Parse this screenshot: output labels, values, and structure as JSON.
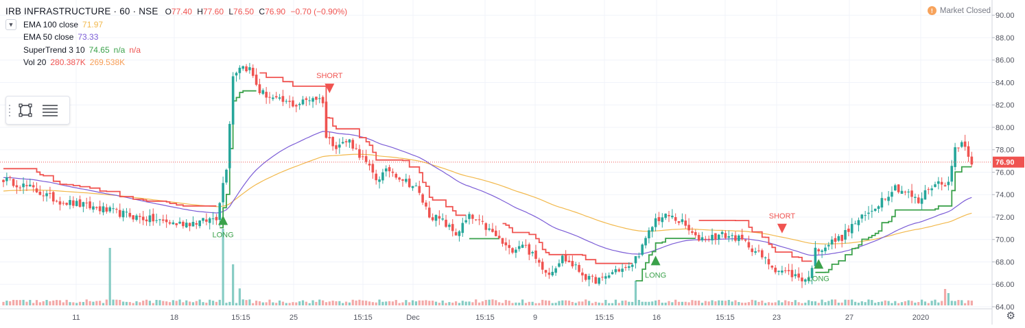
{
  "header": {
    "symbol": "IRB INFRASTRUCTURE · 60 · NSE",
    "ohlc": [
      {
        "label": "O",
        "value": "77.40"
      },
      {
        "label": "H",
        "value": "77.60"
      },
      {
        "label": "L",
        "value": "76.50"
      },
      {
        "label": "C",
        "value": "76.90"
      }
    ],
    "change": "−0.70 (−0.90%)"
  },
  "indicators": [
    {
      "name": "EMA 100 close",
      "values": [
        "71.97"
      ],
      "colors": [
        "#f2b84b"
      ]
    },
    {
      "name": "EMA 50 close",
      "values": [
        "73.33"
      ],
      "colors": [
        "#7b5cd6"
      ]
    },
    {
      "name": "SuperTrend 3 10",
      "values": [
        "74.65",
        "n/a",
        "n/a"
      ],
      "colors": [
        "#3aa14a",
        "#3aa14a",
        "#ef5350"
      ]
    },
    {
      "name": "Vol 20",
      "values": [
        "280.387K",
        "269.538K"
      ],
      "colors": [
        "#ef5350",
        "#f79d55"
      ]
    }
  ],
  "status": {
    "market": "Market Closed",
    "market_icon": "!"
  },
  "tools": [
    "rectangle-icon",
    "horizontal-lines-icon"
  ],
  "colors": {
    "up": "#26a69a",
    "down": "#ef5350",
    "supertrend_up": "#3aa14a",
    "supertrend_down": "#f05350",
    "ema50": "#7b5cd6",
    "ema100": "#f2b84b",
    "vol_up": "#86ccc4",
    "vol_down": "#f3a9a8"
  },
  "chart_data": {
    "type": "candlestick",
    "symbol": "IRB INFRASTRUCTURE",
    "interval": "60",
    "exchange": "NSE",
    "ylim": [
      64.0,
      90.5
    ],
    "y_ticks": [
      "90.00",
      "88.00",
      "86.00",
      "84.00",
      "82.00",
      "80.00",
      "78.00",
      "76.00",
      "74.00",
      "72.00",
      "70.00",
      "68.00",
      "66.00",
      "64.00"
    ],
    "x_ticks": [
      "11",
      "18",
      "15:15",
      "25",
      "15:15",
      "Dec",
      "15:15",
      "9",
      "15:15",
      "16",
      "15:15",
      "23",
      "27",
      "2020"
    ],
    "last_price": "76.90",
    "signals": [
      {
        "label": "LONG",
        "type": "long",
        "price": 71.3
      },
      {
        "label": "SHORT",
        "type": "short",
        "price": 83.9
      },
      {
        "label": "LONG",
        "type": "long",
        "price": 67.7
      },
      {
        "label": "SHORT",
        "type": "short",
        "price": 71.4
      },
      {
        "label": "LONG",
        "type": "long",
        "price": 67.4
      }
    ],
    "close_anchors": [
      [
        0,
        75.4
      ],
      [
        8,
        74.6
      ],
      [
        16,
        73.5
      ],
      [
        28,
        72.8
      ],
      [
        40,
        72.0
      ],
      [
        52,
        71.4
      ],
      [
        60,
        71.6
      ],
      [
        64,
        72.0
      ],
      [
        67,
        76.5
      ],
      [
        69,
        84.6
      ],
      [
        71,
        85.5
      ],
      [
        74,
        85.2
      ],
      [
        77,
        83.2
      ],
      [
        82,
        82.4
      ],
      [
        88,
        82.0
      ],
      [
        93,
        82.7
      ],
      [
        96,
        82.4
      ],
      [
        97,
        79.1
      ],
      [
        100,
        78.4
      ],
      [
        104,
        78.8
      ],
      [
        108,
        77.2
      ],
      [
        112,
        75.4
      ],
      [
        116,
        76.2
      ],
      [
        120,
        75.4
      ],
      [
        124,
        74.6
      ],
      [
        128,
        72.2
      ],
      [
        132,
        71.6
      ],
      [
        136,
        70.5
      ],
      [
        140,
        72.0
      ],
      [
        144,
        71.3
      ],
      [
        148,
        70.3
      ],
      [
        152,
        69.0
      ],
      [
        156,
        69.7
      ],
      [
        160,
        68.2
      ],
      [
        164,
        67.0
      ],
      [
        168,
        68.4
      ],
      [
        172,
        67.5
      ],
      [
        176,
        66.4
      ],
      [
        180,
        66.4
      ],
      [
        184,
        67.3
      ],
      [
        188,
        67.4
      ],
      [
        192,
        69.3
      ],
      [
        196,
        71.8
      ],
      [
        200,
        72.1
      ],
      [
        204,
        71.5
      ],
      [
        208,
        70.1
      ],
      [
        212,
        70.2
      ],
      [
        216,
        70.4
      ],
      [
        220,
        70.2
      ],
      [
        224,
        69.5
      ],
      [
        228,
        68.4
      ],
      [
        232,
        67.4
      ],
      [
        236,
        67.0
      ],
      [
        240,
        66.5
      ],
      [
        242,
        66.5
      ],
      [
        244,
        69.0
      ],
      [
        248,
        69.6
      ],
      [
        252,
        70.2
      ],
      [
        256,
        71.5
      ],
      [
        260,
        72.3
      ],
      [
        264,
        73.6
      ],
      [
        268,
        74.7
      ],
      [
        272,
        74.1
      ],
      [
        275,
        73.3
      ],
      [
        278,
        74.6
      ],
      [
        282,
        75.2
      ],
      [
        284,
        74.9
      ],
      [
        286,
        78.2
      ],
      [
        288,
        78.7
      ],
      [
        290,
        77.7
      ],
      [
        291,
        76.9
      ]
    ],
    "volume_spikes": [
      {
        "bar": 32,
        "value": 210
      },
      {
        "bar": 66,
        "value": 280
      },
      {
        "bar": 69,
        "value": 150
      },
      {
        "bar": 71,
        "value": 62
      },
      {
        "bar": 190,
        "value": 90
      },
      {
        "bar": 283,
        "value": 60
      },
      {
        "bar": 284,
        "value": 45
      }
    ],
    "volume_scale": 280
  }
}
